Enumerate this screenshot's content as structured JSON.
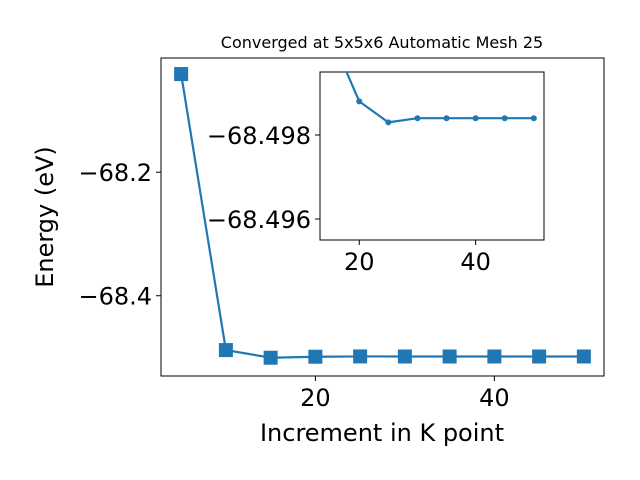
{
  "chart_data": [
    {
      "type": "line",
      "title": "Converged at 5x5x6 Automatic Mesh 25",
      "xlabel": "Increment in K point",
      "ylabel": "Energy (eV)",
      "x": [
        5,
        10,
        15,
        20,
        25,
        30,
        35,
        40,
        45,
        50
      ],
      "series": [
        {
          "values": [
            -68.041,
            -68.488,
            -68.5004,
            -68.4988,
            -68.4983,
            -68.4984,
            -68.4984,
            -68.4984,
            -68.4984,
            -68.4984
          ]
        }
      ],
      "xlim": [
        2.75,
        52.25
      ],
      "ylim": [
        -68.53,
        -68.015
      ],
      "xticks": [
        20,
        40
      ],
      "xtick_labels": [
        "20",
        "40"
      ],
      "yticks": [
        -68.2,
        -68.4
      ],
      "ytick_labels": [
        "−68.2",
        "−68.4"
      ],
      "marker": "square",
      "color": "#1f77b4",
      "grid": false
    },
    {
      "type": "line",
      "inset": true,
      "x": [
        15,
        20,
        25,
        30,
        35,
        40,
        45,
        50
      ],
      "series": [
        {
          "values": [
            -68.5004,
            -68.4988,
            -68.4983,
            -68.4984,
            -68.4984,
            -68.4984,
            -68.4984,
            -68.4984
          ]
        }
      ],
      "xlim": [
        13.25,
        51.75
      ],
      "ylim": [
        -68.4955,
        -68.4995
      ],
      "xticks": [
        20,
        40
      ],
      "xtick_labels": [
        "20",
        "40"
      ],
      "yticks": [
        -68.498,
        -68.496
      ],
      "ytick_labels": [
        "−68.498",
        "−68.496"
      ],
      "marker": "circle",
      "color": "#1f77b4",
      "grid": false
    }
  ]
}
